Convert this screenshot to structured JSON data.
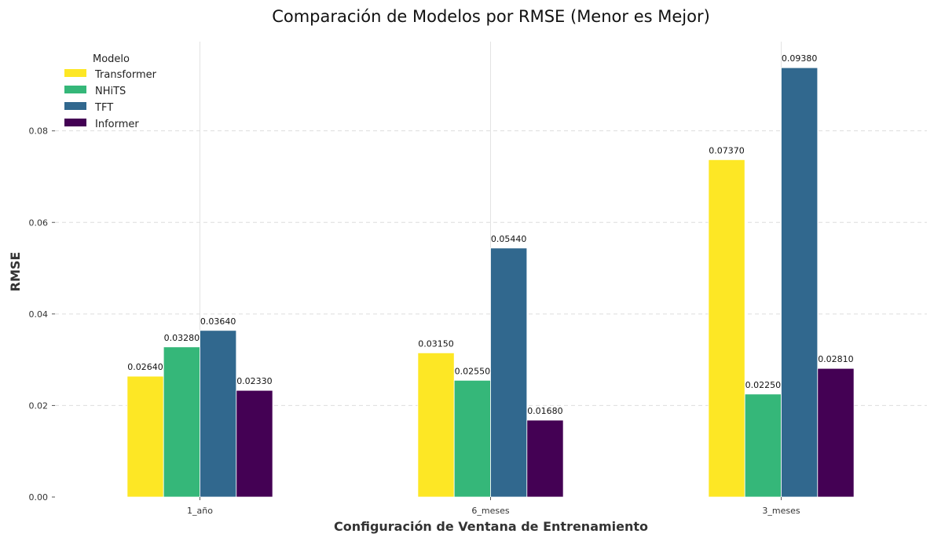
{
  "chart_data": {
    "type": "bar",
    "title": "Comparación de Modelos por RMSE (Menor es Mejor)",
    "xlabel": "Configuración de Ventana de Entrenamiento",
    "ylabel": "RMSE",
    "categories": [
      "1_año",
      "6_meses",
      "3_meses"
    ],
    "series": [
      {
        "name": "Transformer",
        "values": [
          0.0264,
          0.0315,
          0.0737
        ],
        "labels": [
          "0.02640",
          "0.03150",
          "0.07370"
        ],
        "color": "#fde725"
      },
      {
        "name": "NHiTS",
        "values": [
          0.0328,
          0.0255,
          0.0225
        ],
        "labels": [
          "0.03280",
          "0.02550",
          "0.02250"
        ],
        "color": "#35b779"
      },
      {
        "name": "TFT",
        "values": [
          0.0364,
          0.0544,
          0.0938
        ],
        "labels": [
          "0.03640",
          "0.05440",
          "0.09380"
        ],
        "color": "#31688e"
      },
      {
        "name": "Informer",
        "values": [
          0.0233,
          0.0168,
          0.0281
        ],
        "labels": [
          "0.02330",
          "0.01680",
          "0.02810"
        ],
        "color": "#440154"
      }
    ],
    "ylim": [
      0,
      0.0995
    ],
    "yticks": [
      0.0,
      0.02,
      0.04,
      0.06,
      0.08
    ],
    "ytick_labels": [
      "0.00",
      "0.02",
      "0.04",
      "0.06",
      "0.08"
    ],
    "legend": {
      "title": "Modelo",
      "placement": "top-left"
    },
    "grid": {
      "y": true,
      "y_style": "dashed",
      "x": true
    }
  }
}
